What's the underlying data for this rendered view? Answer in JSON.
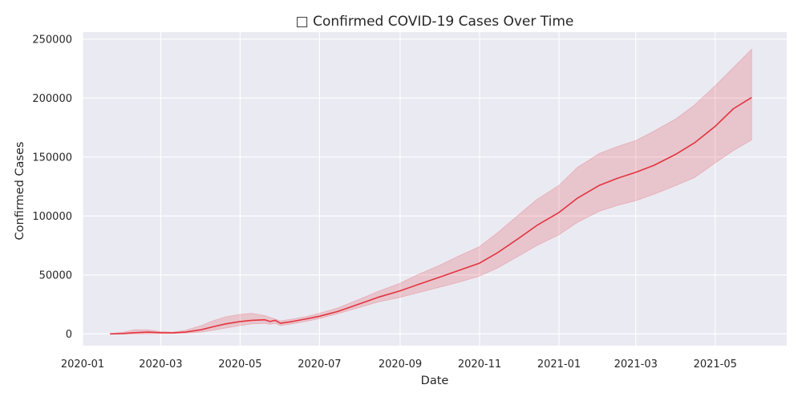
{
  "chart_data": {
    "type": "line",
    "title": "□ Confirmed COVID-19 Cases Over Time",
    "xlabel": "Date",
    "ylabel": "Confirmed Cases",
    "xlim": [
      "2020-01-01",
      "2021-06-25"
    ],
    "ylim": [
      -10000,
      256000
    ],
    "grid": true,
    "x_ticks": [
      {
        "date": "2020-01-01",
        "label": "2020-01"
      },
      {
        "date": "2020-03-01",
        "label": "2020-03"
      },
      {
        "date": "2020-05-01",
        "label": "2020-05"
      },
      {
        "date": "2020-07-01",
        "label": "2020-07"
      },
      {
        "date": "2020-09-01",
        "label": "2020-09"
      },
      {
        "date": "2020-11-01",
        "label": "2020-11"
      },
      {
        "date": "2021-01-01",
        "label": "2021-01"
      },
      {
        "date": "2021-03-01",
        "label": "2021-03"
      },
      {
        "date": "2021-05-01",
        "label": "2021-05"
      }
    ],
    "y_ticks": [
      {
        "value": 0,
        "label": "0"
      },
      {
        "value": 50000,
        "label": "50000"
      },
      {
        "value": 100000,
        "label": "100000"
      },
      {
        "value": 150000,
        "label": "150000"
      },
      {
        "value": 200000,
        "label": "200000"
      },
      {
        "value": 250000,
        "label": "250000"
      }
    ],
    "colors": {
      "line": "#e2343e",
      "band": "#e2343e",
      "background": "#eaeaf2",
      "grid": "#ffffff"
    },
    "series": [
      {
        "x": [
          "2020-01-22",
          "2020-02-01",
          "2020-02-10",
          "2020-02-20",
          "2020-03-01",
          "2020-03-10",
          "2020-03-20",
          "2020-04-01",
          "2020-04-10",
          "2020-04-20",
          "2020-05-01",
          "2020-05-10",
          "2020-05-20",
          "2020-05-24",
          "2020-05-28",
          "2020-06-01",
          "2020-06-10",
          "2020-06-20",
          "2020-07-01",
          "2020-07-15",
          "2020-08-01",
          "2020-08-15",
          "2020-09-01",
          "2020-09-15",
          "2020-10-01",
          "2020-10-15",
          "2020-11-01",
          "2020-11-15",
          "2020-12-01",
          "2020-12-15",
          "2021-01-01",
          "2021-01-15",
          "2021-02-01",
          "2021-02-15",
          "2021-03-01",
          "2021-03-15",
          "2021-04-01",
          "2021-04-15",
          "2021-05-01",
          "2021-05-15",
          "2021-05-29"
        ],
        "values": [
          0,
          300,
          1000,
          1500,
          1000,
          800,
          1500,
          3500,
          6000,
          8500,
          10500,
          11500,
          12000,
          10500,
          11500,
          9000,
          10500,
          12500,
          15000,
          19000,
          25500,
          31000,
          36500,
          42000,
          48000,
          53500,
          60000,
          69000,
          81000,
          92000,
          103000,
          115000,
          126000,
          132000,
          137000,
          143000,
          152500,
          162000,
          176000,
          191000,
          200500
        ],
        "upper": [
          0,
          1500,
          3500,
          3500,
          2000,
          1500,
          3000,
          7000,
          11000,
          14500,
          16500,
          17500,
          15500,
          14000,
          12500,
          11000,
          12500,
          14500,
          17500,
          22000,
          29500,
          36000,
          43000,
          50500,
          58000,
          65500,
          74000,
          86000,
          101000,
          114000,
          126000,
          141000,
          153000,
          159000,
          164000,
          172000,
          182500,
          194000,
          210500,
          226000,
          241500
        ],
        "lower": [
          0,
          0,
          0,
          0,
          200,
          300,
          600,
          1500,
          3000,
          5000,
          7000,
          8500,
          9000,
          8000,
          9000,
          7000,
          8500,
          10500,
          13000,
          17000,
          22500,
          27000,
          31000,
          35000,
          39500,
          43500,
          49000,
          56000,
          66000,
          75000,
          84000,
          94500,
          104000,
          109000,
          113000,
          118500,
          126000,
          132500,
          145000,
          155500,
          164500
        ]
      }
    ]
  }
}
